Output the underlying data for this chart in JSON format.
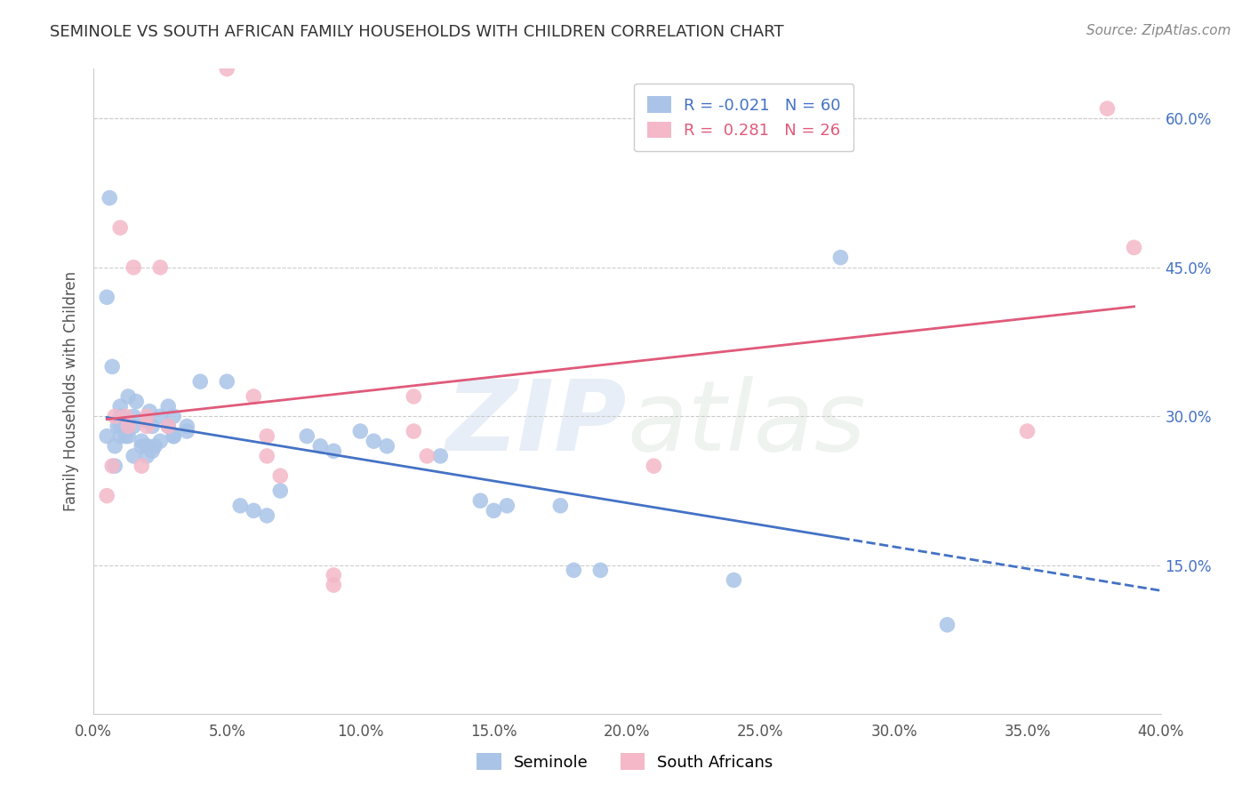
{
  "title": "SEMINOLE VS SOUTH AFRICAN FAMILY HOUSEHOLDS WITH CHILDREN CORRELATION CHART",
  "source": "Source: ZipAtlas.com",
  "ylabel": "Family Households with Children",
  "xlim": [
    0.0,
    0.4
  ],
  "ylim": [
    0.0,
    0.65
  ],
  "xtick_labels": [
    "0.0%",
    "5.0%",
    "10.0%",
    "15.0%",
    "20.0%",
    "25.0%",
    "30.0%",
    "35.0%",
    "40.0%"
  ],
  "xtick_vals": [
    0.0,
    0.05,
    0.1,
    0.15,
    0.2,
    0.25,
    0.3,
    0.35,
    0.4
  ],
  "ytick_labels_right": [
    "60.0%",
    "45.0%",
    "30.0%",
    "15.0%"
  ],
  "ytick_vals_right": [
    0.6,
    0.45,
    0.3,
    0.15
  ],
  "grid_color": "#cccccc",
  "background_color": "#ffffff",
  "watermark_zip": "ZIP",
  "watermark_atlas": "atlas",
  "seminole_color": "#aac4e8",
  "south_african_color": "#f4b8c8",
  "seminole_line_color": "#4472c4",
  "south_african_line_color": "#e05a7a",
  "legend_R_seminole": "-0.021",
  "legend_N_seminole": "60",
  "legend_R_sa": "0.281",
  "legend_N_sa": "26",
  "seminole_x": [
    0.005,
    0.01,
    0.01,
    0.01,
    0.012,
    0.013,
    0.015,
    0.015,
    0.016,
    0.018,
    0.02,
    0.02,
    0.021,
    0.022,
    0.023,
    0.025,
    0.028,
    0.028,
    0.03,
    0.03,
    0.005,
    0.006,
    0.007,
    0.008,
    0.008,
    0.009,
    0.01,
    0.012,
    0.013,
    0.015,
    0.018,
    0.02,
    0.02,
    0.022,
    0.025,
    0.03,
    0.035,
    0.035,
    0.04,
    0.05,
    0.055,
    0.06,
    0.065,
    0.07,
    0.08,
    0.085,
    0.09,
    0.1,
    0.105,
    0.11,
    0.13,
    0.145,
    0.15,
    0.155,
    0.175,
    0.18,
    0.19,
    0.24,
    0.28,
    0.32
  ],
  "seminole_y": [
    0.28,
    0.3,
    0.29,
    0.31,
    0.28,
    0.32,
    0.3,
    0.29,
    0.315,
    0.27,
    0.295,
    0.27,
    0.305,
    0.29,
    0.27,
    0.3,
    0.31,
    0.29,
    0.3,
    0.28,
    0.42,
    0.52,
    0.35,
    0.27,
    0.25,
    0.29,
    0.28,
    0.285,
    0.28,
    0.26,
    0.275,
    0.27,
    0.26,
    0.265,
    0.275,
    0.28,
    0.285,
    0.29,
    0.335,
    0.335,
    0.21,
    0.205,
    0.2,
    0.225,
    0.28,
    0.27,
    0.265,
    0.285,
    0.275,
    0.27,
    0.26,
    0.215,
    0.205,
    0.21,
    0.21,
    0.145,
    0.145,
    0.135,
    0.46,
    0.09
  ],
  "sa_x": [
    0.005,
    0.007,
    0.008,
    0.01,
    0.012,
    0.013,
    0.015,
    0.018,
    0.02,
    0.02,
    0.025,
    0.028,
    0.05,
    0.06,
    0.065,
    0.065,
    0.07,
    0.09,
    0.09,
    0.12,
    0.12,
    0.125,
    0.21,
    0.35,
    0.38,
    0.39
  ],
  "sa_y": [
    0.22,
    0.25,
    0.3,
    0.49,
    0.3,
    0.29,
    0.45,
    0.25,
    0.29,
    0.3,
    0.45,
    0.29,
    0.65,
    0.32,
    0.28,
    0.26,
    0.24,
    0.14,
    0.13,
    0.32,
    0.285,
    0.26,
    0.25,
    0.285,
    0.61,
    0.47
  ]
}
